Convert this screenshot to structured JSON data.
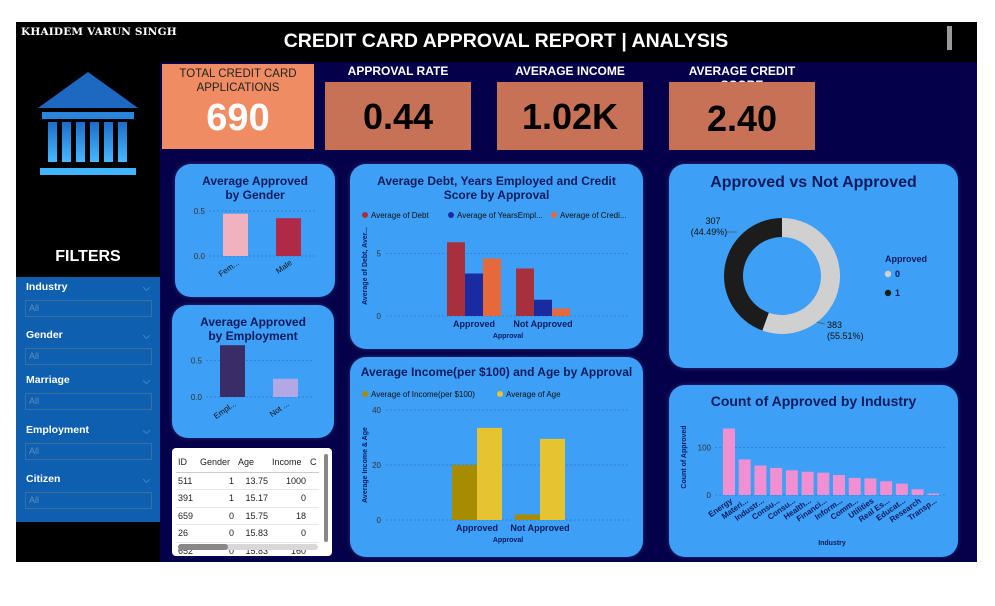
{
  "author": "KHAIDEM VARUN  SINGH",
  "title": "CREDIT CARD APPROVAL REPORT | ANALYSIS",
  "icons": [
    "bank-icon",
    "chevron-down-icon",
    "sort-up-icon"
  ],
  "colors": {
    "dashboard_bg": "#05004a",
    "card_bg": "#3d9ff5",
    "kpi_accent": "#c77257",
    "kpi_highlight": "#f08c63",
    "filter_panel": "#0f5fb1"
  },
  "filters": {
    "title": "FILTERS",
    "items": [
      {
        "label": "Industry",
        "value": "All"
      },
      {
        "label": "Gender",
        "value": "All"
      },
      {
        "label": "Marriage",
        "value": "All"
      },
      {
        "label": "Employment",
        "value": "All"
      },
      {
        "label": "Citizen",
        "value": "All"
      }
    ]
  },
  "kpis": [
    {
      "label": "TOTAL CREDIT CARD APPLICATIONS",
      "value": "690"
    },
    {
      "label": "APPROVAL RATE",
      "value": "0.44"
    },
    {
      "label": "AVERAGE INCOME",
      "value": "1.02K"
    },
    {
      "label": "AVERAGE CREDIT SCORE",
      "value": "2.40"
    }
  ],
  "table": {
    "columns": [
      "ID",
      "Gender",
      "Age",
      "Income",
      "C"
    ],
    "rows": [
      [
        "511",
        "1",
        "13.75",
        "1000",
        ""
      ],
      [
        "391",
        "1",
        "15.17",
        "0",
        ""
      ],
      [
        "659",
        "0",
        "15.75",
        "18",
        ""
      ],
      [
        "26",
        "0",
        "15.83",
        "0",
        ""
      ],
      [
        "652",
        "0",
        "15.83",
        "160",
        ""
      ]
    ]
  },
  "chart_data": [
    {
      "type": "bar",
      "title": "Average Approved by Gender",
      "categories": [
        "Fem...",
        "Male"
      ],
      "values": [
        0.47,
        0.42
      ],
      "colors": [
        "#f0b2bc",
        "#b02a48"
      ],
      "yticks": [
        "0.0",
        "0.5"
      ],
      "ylim": [
        0,
        0.6
      ]
    },
    {
      "type": "bar",
      "title": "Average Approved by Employment",
      "categories": [
        "Empl...",
        "Not ..."
      ],
      "values": [
        0.71,
        0.25
      ],
      "colors": [
        "#3a2c66",
        "#b3a8e6"
      ],
      "yticks": [
        "0.0",
        "0.5"
      ],
      "ylim": [
        0,
        0.85
      ]
    },
    {
      "type": "bar",
      "title": "Average Debt, Years Employed and Credit Score by Approval",
      "categories": [
        "Approved",
        "Not Approved"
      ],
      "series": [
        {
          "name": "Average of Debt",
          "color": "#a8303d",
          "values": [
            5.9,
            3.8
          ]
        },
        {
          "name": "Average of YearsEmpl...",
          "color": "#1a2aa0",
          "values": [
            3.4,
            1.3
          ]
        },
        {
          "name": "Average of Credi...",
          "color": "#e6693b",
          "values": [
            4.6,
            0.6
          ]
        }
      ],
      "xlabel": "Approval",
      "ylabel": "Average of Debt, Aver...",
      "yticks": [
        "0",
        "5"
      ],
      "ylim": [
        0,
        8
      ]
    },
    {
      "type": "bar",
      "title": "Average Income(per $100) and Age by Approval",
      "categories": [
        "Approved",
        "Not Approved"
      ],
      "series": [
        {
          "name": "Average of Income(per $100)",
          "color": "#a88c00",
          "values": [
            20.0,
            2.0
          ]
        },
        {
          "name": "Average of Age",
          "color": "#e6c330",
          "values": [
            33.5,
            29.5
          ]
        }
      ],
      "xlabel": "Approval",
      "ylabel": "Average Income & Age",
      "yticks": [
        "0",
        "20",
        "40"
      ],
      "ylim": [
        0,
        40
      ]
    },
    {
      "type": "pie",
      "title": "Approved vs Not Approved",
      "legend_title": "Approved",
      "slices": [
        {
          "label": "0",
          "value": 383,
          "label_text": "383",
          "pct_text": "(55.51%)",
          "color": "#d0d0d0"
        },
        {
          "label": "1",
          "value": 307,
          "label_text": "307",
          "pct_text": "(44.49%)",
          "color": "#1c1c1c"
        }
      ]
    },
    {
      "type": "bar",
      "title": "Count of Approved by Industry",
      "categories": [
        "Energy",
        "Materi...",
        "Industr...",
        "Consu...",
        "Consu...",
        "Health...",
        "Financi...",
        "Inform...",
        "Comm...",
        "Utilities",
        "Real Es...",
        "Educat...",
        "Research",
        "Transp..."
      ],
      "values": [
        140,
        75,
        62,
        57,
        52,
        49,
        47,
        42,
        36,
        35,
        29,
        24,
        12,
        3
      ],
      "color": "#f08fd2",
      "xlabel": "Industry",
      "ylabel": "Count of Approved",
      "yticks": [
        "0",
        "100"
      ],
      "ylim": [
        0,
        160
      ]
    }
  ]
}
